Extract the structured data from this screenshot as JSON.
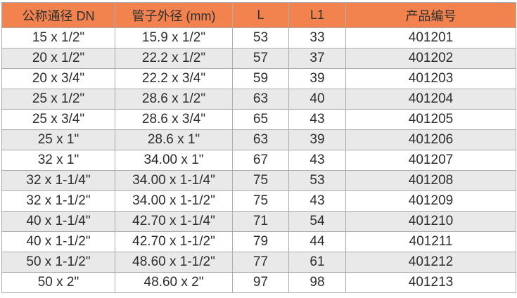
{
  "colors": {
    "header_bg": "#f2834e",
    "row_bg": "#ffffff",
    "row_alt_bg": "#e9e9e9",
    "border": "#acacac",
    "text": "#2d2d2d"
  },
  "chart_data": {
    "type": "table",
    "title": "",
    "columns": [
      "公称通径 DN",
      "管子外径 (mm)",
      "L",
      "L1",
      "产品编号"
    ],
    "rows": [
      [
        "15 x 1/2\"",
        "15.9 x 1/2\"",
        "53",
        "33",
        "401201"
      ],
      [
        "20 x 1/2\"",
        "22.2 x 1/2\"",
        "57",
        "37",
        "401202"
      ],
      [
        "20 x 3/4\"",
        "22.2 x 3/4\"",
        "59",
        "39",
        "401203"
      ],
      [
        "25 x 1/2\"",
        "28.6 x 1/2\"",
        "63",
        "40",
        "401204"
      ],
      [
        "25 x 3/4\"",
        "28.6 x 3/4\"",
        "65",
        "43",
        "401205"
      ],
      [
        "25 x 1\"",
        "28.6 x 1\"",
        "63",
        "39",
        "401206"
      ],
      [
        "32 x 1\"",
        "34.00 x 1\"",
        "67",
        "43",
        "401207"
      ],
      [
        "32 x 1-1/4\"",
        "34.00 x 1-1/4\"",
        "75",
        "53",
        "401208"
      ],
      [
        "32 x 1-1/2\"",
        "34.00 x 1-1/2\"",
        "75",
        "43",
        "401209"
      ],
      [
        "40 x 1-1/4\"",
        "42.70 x 1-1/4\"",
        "71",
        "54",
        "401210"
      ],
      [
        "40 x 1-1/2\"",
        "42.70 x 1-1/2\"",
        "79",
        "44",
        "401211"
      ],
      [
        "50 x 1-1/2\"",
        "48.60 x 1-1/2\"",
        "77",
        "61",
        "401212"
      ],
      [
        "50 x 2\"",
        "48.60 x 2\"",
        "97",
        "98",
        "401213"
      ]
    ]
  }
}
